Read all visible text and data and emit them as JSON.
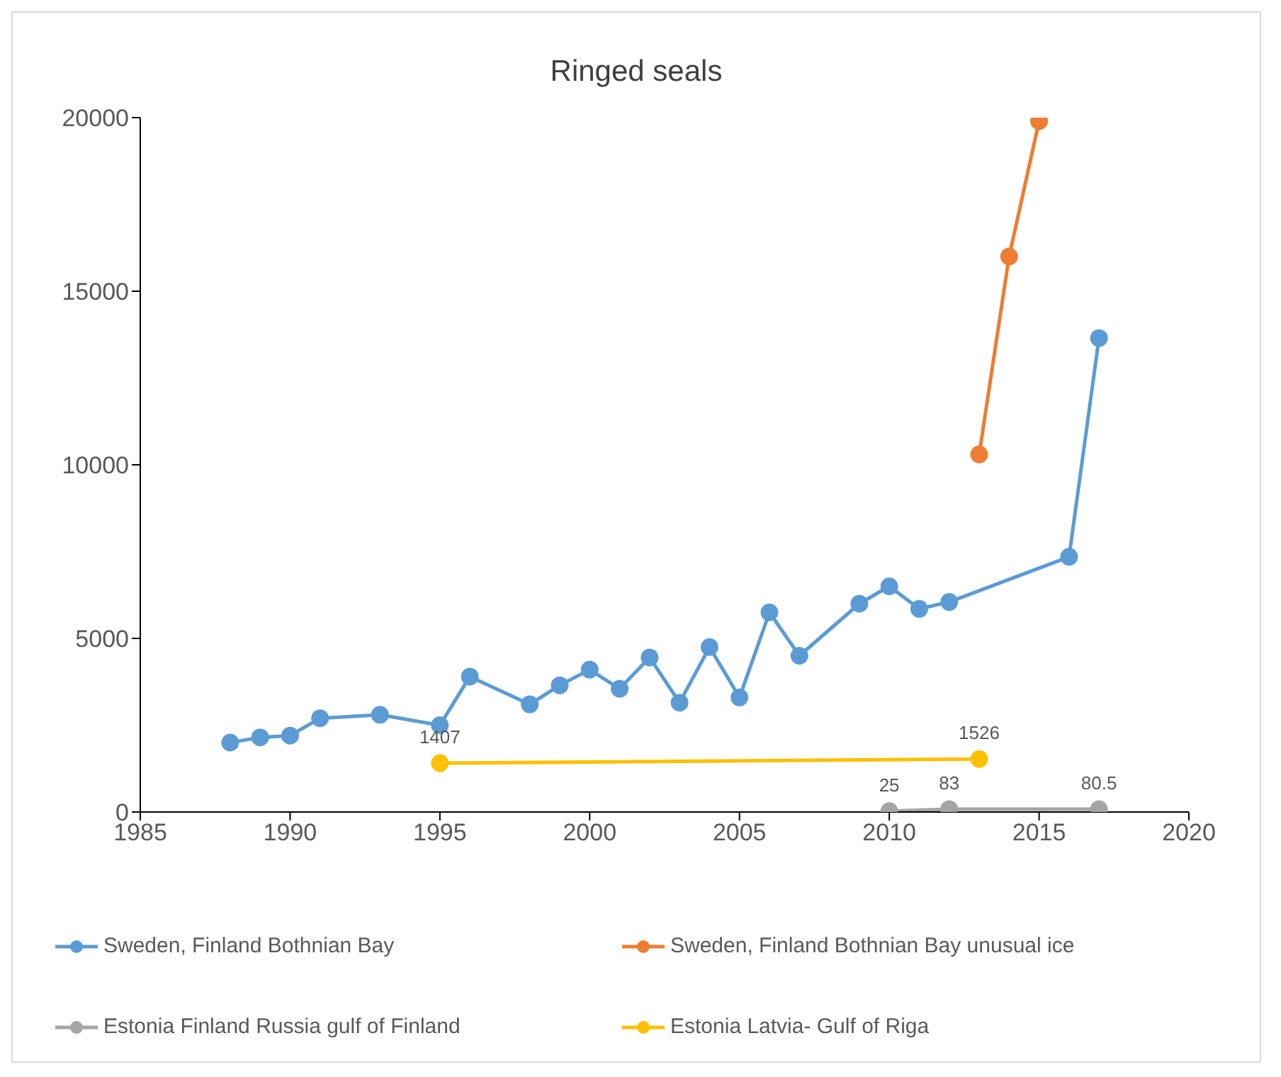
{
  "chart_data": {
    "type": "line",
    "title": "Ringed seals",
    "xlim": [
      1985,
      2020
    ],
    "xticks": [
      1985,
      1990,
      1995,
      2000,
      2005,
      2010,
      2015,
      2020
    ],
    "ylim": [
      0,
      20000
    ],
    "yticks": [
      0,
      5000,
      10000,
      15000,
      20000
    ],
    "grid": false,
    "legend": "bottom",
    "marker": "circle",
    "series": [
      {
        "name": "Sweden, Finland Bothnian Bay",
        "color": "#5b9bd5",
        "x": [
          1988,
          1989,
          1990,
          1991,
          1993,
          1995,
          1996,
          1998,
          1999,
          2000,
          2001,
          2002,
          2003,
          2004,
          2005,
          2006,
          2007,
          2009,
          2010,
          2011,
          2012,
          2016,
          2017
        ],
        "values": [
          2000,
          2150,
          2200,
          2700,
          2800,
          2500,
          3900,
          3100,
          3650,
          4100,
          3550,
          4450,
          3150,
          4750,
          3300,
          5750,
          4500,
          6000,
          6500,
          5850,
          6050,
          7350,
          13650
        ]
      },
      {
        "name": "Sweden, Finland Bothnian Bay unusual ice",
        "color": "#ed7d31",
        "x": [
          2013,
          2014,
          2015
        ],
        "values": [
          10300,
          16000,
          19900
        ]
      },
      {
        "name": "Estonia Finland Russia  gulf of Finland",
        "color": "#a5a5a5",
        "x": [
          2010,
          2012,
          2017
        ],
        "values": [
          25,
          83,
          80.5
        ],
        "value_labels": [
          "25",
          "83",
          "80.5"
        ]
      },
      {
        "name": "Estonia Latvia- Gulf of Riga",
        "color": "#ffc000",
        "x": [
          1995,
          2013
        ],
        "values": [
          1407,
          1526
        ],
        "value_labels": [
          "1407",
          "1526"
        ]
      }
    ]
  }
}
